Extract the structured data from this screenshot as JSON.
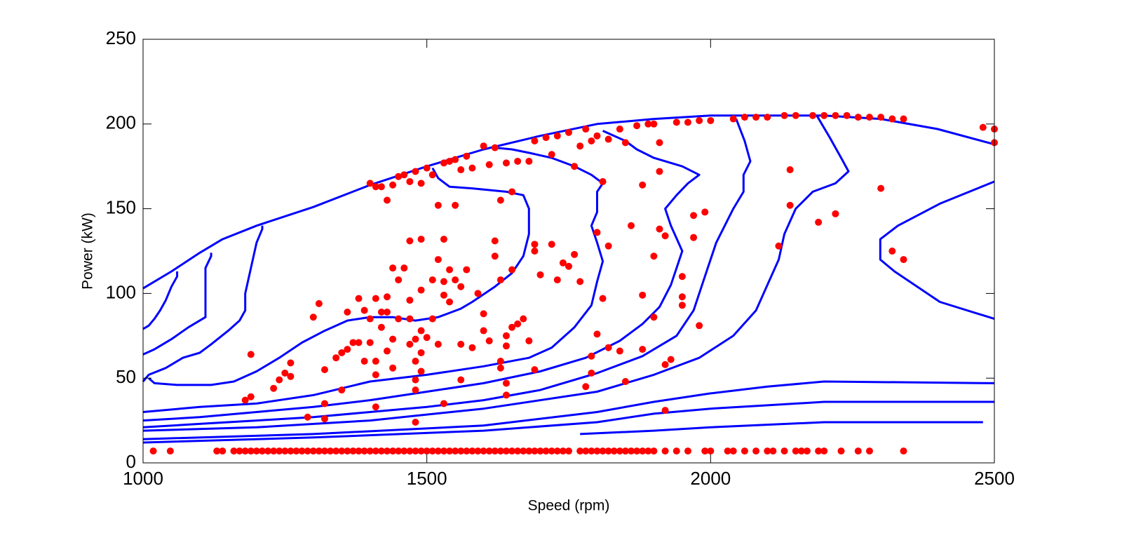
{
  "chart_data": {
    "type": "scatter",
    "x_label": "Speed (rpm)",
    "y_label": "Power (kW)",
    "xlim": [
      1000,
      2500
    ],
    "ylim": [
      0,
      250
    ],
    "xticks": [
      1000,
      1500,
      2000,
      2500
    ],
    "yticks": [
      0,
      50,
      100,
      150,
      200,
      250
    ],
    "grid": false,
    "lines": [
      {
        "color": "#0000ff",
        "x": [
          1000,
          1050,
          1100,
          1140,
          1200,
          1300,
          1400,
          1500,
          1600,
          1700,
          1800,
          1900,
          2000,
          2100,
          2200,
          2300,
          2400,
          2500
        ],
        "y": [
          103,
          113,
          124,
          132,
          140,
          151,
          164,
          175,
          185,
          193,
          200,
          203,
          205,
          205,
          205,
          203,
          197,
          188
        ]
      },
      {
        "color": "#0000ff",
        "x": [
          1000,
          1010,
          1020,
          1030,
          1040,
          1050,
          1060,
          1060
        ],
        "y": [
          79,
          81,
          85,
          90,
          96,
          104,
          110,
          113
        ]
      },
      {
        "color": "#0000ff",
        "x": [
          1000,
          1020,
          1050,
          1080,
          1110,
          1110,
          1110,
          1120,
          1120
        ],
        "y": [
          64,
          67,
          73,
          80,
          86,
          100,
          115,
          122,
          124
        ]
      },
      {
        "color": "#0000ff",
        "x": [
          1000,
          1010,
          1040,
          1070,
          1100,
          1120,
          1150,
          1170,
          1180,
          1180,
          1190,
          1200,
          1210,
          1210
        ],
        "y": [
          48,
          52,
          56,
          62,
          65,
          70,
          78,
          84,
          90,
          100,
          115,
          130,
          138,
          140
        ]
      },
      {
        "color": "#0000ff",
        "x": [
          1010,
          1020,
          1060,
          1120,
          1160,
          1200,
          1240,
          1280,
          1320,
          1360,
          1400,
          1440,
          1480,
          1520,
          1560,
          1580,
          1620,
          1650,
          1670,
          1680,
          1680,
          1670,
          1640,
          1580,
          1540,
          1520,
          1510
        ],
        "y": [
          50,
          47,
          46,
          46,
          48,
          54,
          62,
          71,
          78,
          84,
          86,
          86,
          84,
          86,
          91,
          95,
          104,
          112,
          122,
          135,
          150,
          158,
          160,
          162,
          163,
          168,
          174
        ]
      },
      {
        "color": "#0000ff",
        "x": [
          1000,
          1100,
          1200,
          1300,
          1400,
          1500,
          1600,
          1680,
          1720,
          1760,
          1790,
          1800,
          1810,
          1800,
          1790,
          1800,
          1800,
          1810,
          1790,
          1760,
          1720,
          1680,
          1650,
          1620
        ],
        "y": [
          30,
          33,
          35,
          40,
          48,
          52,
          57,
          62,
          68,
          80,
          93,
          107,
          119,
          130,
          140,
          148,
          160,
          165,
          170,
          175,
          180,
          183,
          185,
          186
        ]
      },
      {
        "color": "#0000ff",
        "x": [
          1000,
          1100,
          1200,
          1300,
          1400,
          1500,
          1600,
          1700,
          1780,
          1840,
          1880,
          1910,
          1930,
          1940,
          1950,
          1930,
          1920,
          1940,
          1960,
          1980,
          1950,
          1900,
          1870,
          1850,
          1810
        ],
        "y": [
          25,
          27,
          30,
          33,
          37,
          42,
          47,
          54,
          62,
          72,
          82,
          92,
          105,
          115,
          125,
          140,
          150,
          158,
          165,
          170,
          175,
          180,
          185,
          190,
          196
        ]
      },
      {
        "color": "#0000ff",
        "x": [
          1000,
          1100,
          1200,
          1300,
          1400,
          1500,
          1600,
          1700,
          1800,
          1880,
          1940,
          1970,
          1990,
          2010,
          2040,
          2058,
          2058,
          2070,
          2060,
          2045
        ],
        "y": [
          21,
          23,
          25,
          27,
          30,
          33,
          37,
          43,
          53,
          63,
          75,
          90,
          110,
          130,
          150,
          160,
          170,
          178,
          190,
          203
        ]
      },
      {
        "color": "#0000ff",
        "x": [
          1000,
          1200,
          1400,
          1600,
          1800,
          1900,
          1980,
          2040,
          2080,
          2100,
          2120,
          2130,
          2150,
          2180,
          2220,
          2243,
          2230,
          2210,
          2187
        ],
        "y": [
          19,
          21,
          25,
          32,
          42,
          52,
          62,
          75,
          90,
          105,
          120,
          135,
          150,
          160,
          165,
          172,
          180,
          192,
          205
        ]
      },
      {
        "color": "#0000ff",
        "x": [
          2500,
          2404,
          2330,
          2299,
          2299,
          2324,
          2404,
          2500
        ],
        "y": [
          166,
          153,
          140,
          132,
          120,
          113,
          95,
          85
        ]
      },
      {
        "color": "#0000ff",
        "x": [
          1000,
          1300,
          1600,
          1800,
          1900,
          2000,
          2100,
          2200,
          2500
        ],
        "y": [
          14,
          17,
          22,
          30,
          36,
          41,
          45,
          48,
          47
        ]
      },
      {
        "color": "#0000ff",
        "x": [
          1000,
          1300,
          1600,
          1800,
          1900,
          2000,
          2100,
          2200,
          2500
        ],
        "y": [
          12,
          15,
          19,
          24,
          29,
          32,
          34,
          36,
          36
        ]
      },
      {
        "color": "#0000ff",
        "x": [
          1770,
          1900,
          2000,
          2200,
          2480
        ],
        "y": [
          17,
          19,
          21,
          24,
          24
        ]
      }
    ],
    "series": [
      {
        "color": "#ff0000",
        "x": [
          1018,
          1048,
          1130,
          1140,
          1160,
          1170,
          1180,
          1190,
          1200,
          1210,
          1220,
          1230,
          1240,
          1250,
          1260,
          1270,
          1280,
          1290,
          1300,
          1310,
          1320,
          1330,
          1340,
          1350,
          1360,
          1370,
          1380,
          1390,
          1400,
          1410,
          1420,
          1430,
          1440,
          1450,
          1460,
          1470,
          1480,
          1490,
          1500,
          1510,
          1520,
          1530,
          1540,
          1550,
          1560,
          1570,
          1580,
          1590,
          1600,
          1610,
          1620,
          1630,
          1640,
          1650,
          1660,
          1670,
          1680,
          1690,
          1700,
          1710,
          1720,
          1730,
          1740,
          1750,
          1770,
          1780,
          1790,
          1800,
          1810,
          1820,
          1830,
          1840,
          1850,
          1860,
          1870,
          1880,
          1890,
          1900,
          1920,
          1940,
          1960,
          1990,
          2000,
          2030,
          2040,
          2060,
          2080,
          2100,
          2110,
          2130,
          2150,
          2160,
          2170,
          2190,
          2200,
          2230,
          2260,
          2280,
          2340
        ],
        "y": [
          7,
          7,
          7,
          7,
          7,
          7,
          7,
          7,
          7,
          7,
          7,
          7,
          7,
          7,
          7,
          7,
          7,
          7,
          7,
          7,
          7,
          7,
          7,
          7,
          7,
          7,
          7,
          7,
          7,
          7,
          7,
          7,
          7,
          7,
          7,
          7,
          7,
          7,
          7,
          7,
          7,
          7,
          7,
          7,
          7,
          7,
          7,
          7,
          7,
          7,
          7,
          7,
          7,
          7,
          7,
          7,
          7,
          7,
          7,
          7,
          7,
          7,
          7,
          7,
          7,
          7,
          7,
          7,
          7,
          7,
          7,
          7,
          7,
          7,
          7,
          7,
          7,
          7,
          7,
          7,
          7,
          7,
          7,
          7,
          7,
          7,
          7,
          7,
          7,
          7,
          7,
          7,
          7,
          7,
          7,
          7,
          7,
          7,
          7
        ]
      },
      {
        "color": "#ff0000",
        "x": [
          1180,
          1190,
          1190,
          1230,
          1240,
          1250,
          1260,
          1260,
          1290,
          1300,
          1310,
          1320,
          1320,
          1320,
          1340,
          1350,
          1350,
          1360,
          1360,
          1370,
          1380,
          1380,
          1390,
          1390,
          1400,
          1400,
          1410,
          1410,
          1410,
          1410,
          1420,
          1420,
          1430,
          1430,
          1430,
          1440,
          1440,
          1440,
          1450,
          1450,
          1460,
          1470,
          1470,
          1470,
          1470,
          1480,
          1480,
          1480,
          1480,
          1480,
          1490,
          1490,
          1490,
          1490,
          1490,
          1500,
          1510,
          1510,
          1520,
          1520,
          1530,
          1530,
          1530,
          1530,
          1540,
          1540,
          1550,
          1550,
          1560,
          1560,
          1560,
          1570,
          1580,
          1590,
          1600,
          1600,
          1610,
          1620,
          1620,
          1630,
          1630,
          1630,
          1640,
          1640,
          1640,
          1640,
          1650,
          1650,
          1660,
          1670,
          1680,
          1690,
          1690,
          1690,
          1700,
          1720,
          1730,
          1740,
          1750,
          1760,
          1770,
          1780,
          1790,
          1790,
          1800,
          1800,
          1810,
          1810,
          1820,
          1820,
          1840,
          1850,
          1860,
          1880,
          1880,
          1900,
          1900,
          1910,
          1920,
          1920,
          1920,
          1930,
          1950,
          1950,
          1950,
          1970,
          1970,
          1990,
          1980,
          2120,
          2140,
          2140,
          2190,
          2220,
          2300,
          2320,
          2340
        ],
        "y": [
          37,
          39,
          64,
          44,
          49,
          53,
          59,
          51,
          27,
          86,
          94,
          55,
          26,
          35,
          62,
          65,
          43,
          67,
          89,
          71,
          97,
          71,
          60,
          90,
          71,
          85,
          60,
          52,
          33,
          97,
          80,
          89,
          89,
          66,
          98,
          73,
          56,
          115,
          85,
          108,
          115,
          70,
          85,
          96,
          131,
          43,
          49,
          60,
          73,
          24,
          54,
          65,
          78,
          132,
          102,
          74,
          108,
          85,
          70,
          120,
          99,
          107,
          132,
          35,
          114,
          95,
          108,
          152,
          104,
          70,
          49,
          114,
          68,
          100,
          88,
          78,
          72,
          122,
          131,
          108,
          60,
          56,
          40,
          47,
          69,
          75,
          80,
          114,
          82,
          85,
          72,
          55,
          129,
          125,
          111,
          129,
          108,
          118,
          116,
          123,
          107,
          45,
          53,
          63,
          136,
          76,
          97,
          166,
          128,
          68,
          66,
          48,
          140,
          67,
          99,
          86,
          122,
          138,
          58,
          31,
          134,
          61,
          110,
          93,
          98,
          133,
          146,
          148,
          81,
          128,
          152,
          173,
          142,
          147,
          162,
          125,
          120
        ]
      },
      {
        "color": "#ff0000",
        "x": [
          1400,
          1410,
          1420,
          1430,
          1440,
          1450,
          1460,
          1470,
          1480,
          1490,
          1500,
          1510,
          1520,
          1530,
          1540,
          1550,
          1560,
          1570,
          1580,
          1600,
          1610,
          1620,
          1630,
          1640,
          1650,
          1660,
          1680,
          1690,
          1710,
          1720,
          1730,
          1750,
          1760,
          1770,
          1780,
          1790,
          1800,
          1820,
          1840,
          1850,
          1870,
          1880,
          1890,
          1900,
          1910,
          1910,
          1940,
          1960,
          1980,
          2000,
          2040,
          2060,
          2080,
          2100,
          2130,
          2150,
          2180,
          2200,
          2220,
          2240,
          2260,
          2280,
          2300,
          2320,
          2340,
          2480,
          2500,
          2500
        ],
        "y": [
          165,
          163,
          163,
          155,
          164,
          169,
          170,
          166,
          172,
          165,
          174,
          170,
          152,
          177,
          178,
          179,
          173,
          181,
          174,
          187,
          176,
          186,
          155,
          177,
          160,
          178,
          178,
          190,
          192,
          182,
          193,
          195,
          175,
          187,
          197,
          190,
          193,
          191,
          197,
          189,
          199,
          164,
          200,
          200,
          189,
          172,
          201,
          201,
          202,
          202,
          203,
          204,
          204,
          204,
          205,
          205,
          205,
          205,
          205,
          205,
          204,
          204,
          204,
          203,
          203,
          198,
          197,
          189
        ]
      }
    ]
  }
}
